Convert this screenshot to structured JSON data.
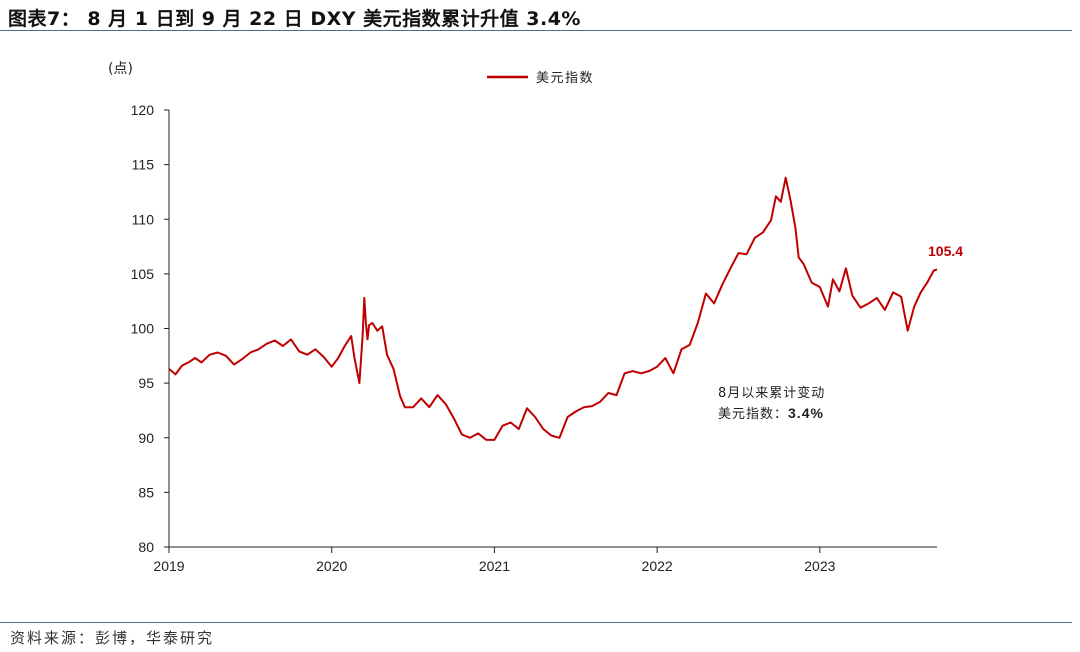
{
  "header": {
    "title": "图表7： 8 月 1 日到 9 月 22 日 DXY 美元指数累计升值 3.4%"
  },
  "footer": {
    "source": "资料来源：彭博，华泰研究"
  },
  "colors": {
    "series": "#c00000",
    "rule": "#4f6b8a",
    "axis": "#222222"
  },
  "chart_data": {
    "type": "line",
    "title": "8 月 1 日到 9 月 22 日 DXY 美元指数累计升值 3.4%",
    "ylabel": "(点)",
    "xlabel": "",
    "ylim": [
      80,
      120
    ],
    "yticks": [
      "80",
      "85",
      "90",
      "95",
      "100",
      "105",
      "110",
      "115",
      "120"
    ],
    "xlim": [
      2019.0,
      2023.72
    ],
    "xticks": [
      "2019",
      "2020",
      "2021",
      "2022",
      "2023"
    ],
    "legend_position": "top-center",
    "series": [
      {
        "name": "美元指数",
        "x": [
          2019.0,
          2019.04,
          2019.08,
          2019.12,
          2019.16,
          2019.2,
          2019.25,
          2019.3,
          2019.35,
          2019.4,
          2019.45,
          2019.5,
          2019.55,
          2019.6,
          2019.65,
          2019.7,
          2019.75,
          2019.8,
          2019.85,
          2019.9,
          2019.95,
          2020.0,
          2020.04,
          2020.08,
          2020.12,
          2020.14,
          2020.17,
          2020.19,
          2020.2,
          2020.21,
          2020.22,
          2020.23,
          2020.25,
          2020.28,
          2020.31,
          2020.34,
          2020.38,
          2020.42,
          2020.45,
          2020.5,
          2020.55,
          2020.6,
          2020.65,
          2020.7,
          2020.75,
          2020.8,
          2020.85,
          2020.9,
          2020.95,
          2021.0,
          2021.05,
          2021.1,
          2021.15,
          2021.2,
          2021.25,
          2021.3,
          2021.35,
          2021.4,
          2021.45,
          2021.5,
          2021.55,
          2021.6,
          2021.65,
          2021.7,
          2021.75,
          2021.8,
          2021.85,
          2021.9,
          2021.95,
          2022.0,
          2022.05,
          2022.1,
          2022.15,
          2022.2,
          2022.25,
          2022.3,
          2022.35,
          2022.4,
          2022.45,
          2022.5,
          2022.55,
          2022.6,
          2022.65,
          2022.7,
          2022.73,
          2022.76,
          2022.79,
          2022.82,
          2022.85,
          2022.87,
          2022.9,
          2022.95,
          2023.0,
          2023.05,
          2023.08,
          2023.12,
          2023.16,
          2023.2,
          2023.25,
          2023.3,
          2023.35,
          2023.4,
          2023.45,
          2023.5,
          2023.54,
          2023.58,
          2023.62,
          2023.66,
          2023.7,
          2023.72
        ],
        "values": [
          96.3,
          95.8,
          96.6,
          96.9,
          97.3,
          96.9,
          97.6,
          97.8,
          97.5,
          96.7,
          97.2,
          97.8,
          98.1,
          98.6,
          98.9,
          98.4,
          99.0,
          97.9,
          97.6,
          98.1,
          97.4,
          96.5,
          97.3,
          98.4,
          99.3,
          97.3,
          95.0,
          99.3,
          102.8,
          100.5,
          99.0,
          100.3,
          100.5,
          99.8,
          100.2,
          97.6,
          96.3,
          93.8,
          92.8,
          92.8,
          93.6,
          92.8,
          93.9,
          93.1,
          91.8,
          90.3,
          90.0,
          90.4,
          89.8,
          89.8,
          91.1,
          91.4,
          90.8,
          92.7,
          91.9,
          90.8,
          90.2,
          90.0,
          91.9,
          92.4,
          92.8,
          92.9,
          93.3,
          94.1,
          93.9,
          95.9,
          96.1,
          95.9,
          96.1,
          96.5,
          97.3,
          95.9,
          98.1,
          98.5,
          100.5,
          103.2,
          102.3,
          104.0,
          105.5,
          106.9,
          106.8,
          108.3,
          108.8,
          109.9,
          112.1,
          111.6,
          113.8,
          111.7,
          109.2,
          106.5,
          105.9,
          104.2,
          103.8,
          102.0,
          104.5,
          103.4,
          105.5,
          103.0,
          101.9,
          102.3,
          102.8,
          101.7,
          103.3,
          102.9,
          99.8,
          102.0,
          103.3,
          104.2,
          105.3,
          105.4
        ]
      }
    ],
    "annotations": [
      {
        "line1": "8月以来累计变动",
        "line2_label": "美元指数：",
        "line2_value": "3.4%"
      },
      {
        "end_value_label": "105.4"
      }
    ]
  }
}
